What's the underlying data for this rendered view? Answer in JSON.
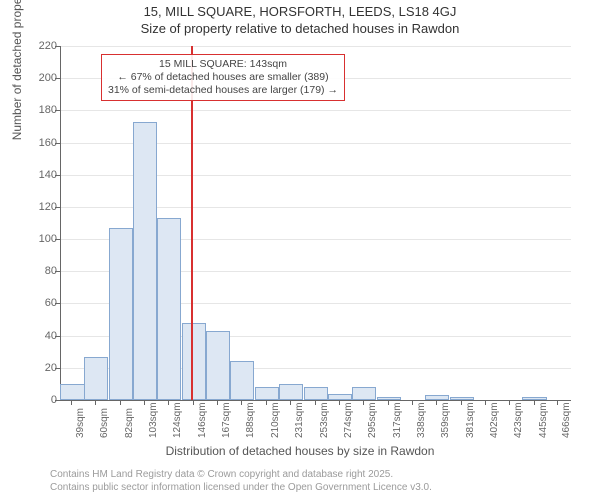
{
  "title_line1": "15, MILL SQUARE, HORSFORTH, LEEDS, LS18 4GJ",
  "title_line2": "Size of property relative to detached houses in Rawdon",
  "y_label": "Number of detached properties",
  "x_label": "Distribution of detached houses by size in Rawdon",
  "footer_line1": "Contains HM Land Registry data © Crown copyright and database right 2025.",
  "footer_line2": "Contains public sector information licensed under the Open Government Licence v3.0.",
  "callout_line1": "15 MILL SQUARE: 143sqm",
  "callout_line2": "← 67% of detached houses are smaller (389)",
  "callout_line3": "31% of semi-detached houses are larger (179) →",
  "chart": {
    "type": "histogram",
    "ylim": [
      0,
      220
    ],
    "ytick_step": 20,
    "bar_fill": "#dde7f3",
    "bar_stroke": "#87a8d0",
    "grid_color": "#e6e6e6",
    "ref_line_color": "#d83030",
    "ref_line_x": 143,
    "x_min": 29,
    "x_max": 477,
    "x_ticks": [
      39,
      60,
      82,
      103,
      124,
      146,
      167,
      188,
      210,
      231,
      253,
      274,
      295,
      317,
      338,
      359,
      381,
      402,
      423,
      445,
      466
    ],
    "bars": [
      {
        "x": 39,
        "h": 10
      },
      {
        "x": 60,
        "h": 27
      },
      {
        "x": 82,
        "h": 107
      },
      {
        "x": 103,
        "h": 173
      },
      {
        "x": 124,
        "h": 113
      },
      {
        "x": 146,
        "h": 48
      },
      {
        "x": 167,
        "h": 43
      },
      {
        "x": 188,
        "h": 24
      },
      {
        "x": 210,
        "h": 8
      },
      {
        "x": 231,
        "h": 10
      },
      {
        "x": 253,
        "h": 8
      },
      {
        "x": 274,
        "h": 4
      },
      {
        "x": 295,
        "h": 8
      },
      {
        "x": 317,
        "h": 2
      },
      {
        "x": 338,
        "h": 0
      },
      {
        "x": 359,
        "h": 3
      },
      {
        "x": 381,
        "h": 2
      },
      {
        "x": 402,
        "h": 0
      },
      {
        "x": 423,
        "h": 0
      },
      {
        "x": 445,
        "h": 2
      },
      {
        "x": 466,
        "h": 0
      }
    ]
  }
}
